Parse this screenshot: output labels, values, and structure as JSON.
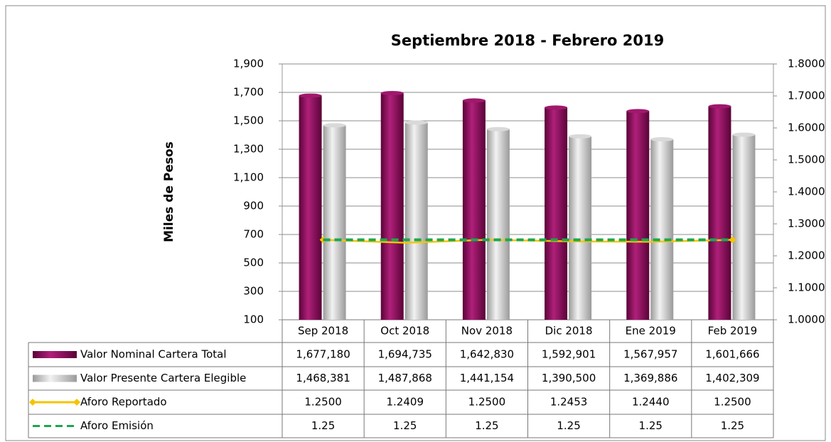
{
  "chart_data": {
    "type": "bar",
    "title": "Septiembre 2018 - Febrero 2019",
    "y_label": "Miles de Pesos",
    "categories": [
      "Sep 2018",
      "Oct 2018",
      "Nov 2018",
      "Dic 2018",
      "Ene 2019",
      "Feb 2019"
    ],
    "series": [
      {
        "name": "Valor Nominal Cartera Total",
        "color": "#8c0b5e",
        "type": "bar",
        "values": [
          1677.18,
          1694.735,
          1642.83,
          1592.901,
          1567.957,
          1601.666
        ],
        "value_labels": [
          "1,677,180",
          "1,694,735",
          "1,642,830",
          "1,592,901",
          "1,567,957",
          "1,601,666"
        ]
      },
      {
        "name": "Valor Presente Cartera Elegible",
        "color": "#bfbfbf",
        "type": "bar",
        "values": [
          1468.381,
          1487.868,
          1441.154,
          1390.5,
          1369.886,
          1402.309
        ],
        "value_labels": [
          "1,468,381",
          "1,487,868",
          "1,441,154",
          "1,390,500",
          "1,369,886",
          "1,402,309"
        ]
      },
      {
        "name": "Aforo Reportado",
        "color": "#f5c400",
        "type": "line",
        "axis": "y2",
        "dashed": false,
        "values": [
          1.25,
          1.2409,
          1.25,
          1.2453,
          1.244,
          1.25
        ],
        "value_labels": [
          "1.2500",
          "1.2409",
          "1.2500",
          "1.2453",
          "1.2440",
          "1.2500"
        ]
      },
      {
        "name": "Aforo Emisión",
        "color": "#1ea650",
        "type": "line",
        "axis": "y2",
        "dashed": true,
        "values": [
          1.25,
          1.25,
          1.25,
          1.25,
          1.25,
          1.25
        ]
      }
    ],
    "ylim": [
      100,
      1900
    ],
    "yticks": [
      {
        "value": 1900,
        "label": "1,900"
      },
      {
        "value": 1700,
        "label": "1,700"
      },
      {
        "value": 1500,
        "label": "1,500"
      },
      {
        "value": 1300,
        "label": "1,300"
      },
      {
        "value": 1100,
        "label": "1,100"
      },
      900,
      700,
      500,
      300,
      100
    ],
    "y2lim": [
      1.0,
      1.8
    ],
    "y2ticks": [
      {
        "value": 1.8,
        "label": "1.8000"
      },
      {
        "value": 1.7,
        "label": "1.7000"
      },
      {
        "value": 1.6,
        "label": "1.6000"
      },
      {
        "value": 1.5,
        "label": "1.5000"
      },
      {
        "value": 1.4,
        "label": "1.4000"
      },
      {
        "value": 1.3,
        "label": "1.3000"
      },
      {
        "value": 1.2,
        "label": "1.2000"
      },
      {
        "value": 1.1,
        "label": "1.1000"
      },
      {
        "value": 1.0,
        "label": "1.0000"
      }
    ],
    "grid": true
  }
}
